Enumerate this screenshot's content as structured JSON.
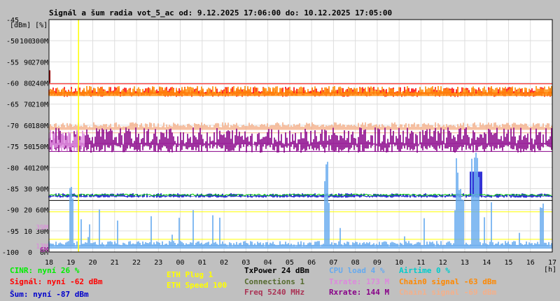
{
  "chart_data": {
    "type": "line",
    "title": "Signál a šum radia vot_5_ac od: 9.12.2025 17:06:00 do: 10.12.2025 17:05:00",
    "units_label": "[dBm] [%]",
    "xlabel": "[h]",
    "x_ticks": [
      "18",
      "19",
      "20",
      "21",
      "22",
      "23",
      "00",
      "01",
      "02",
      "03",
      "04",
      "05",
      "06",
      "07",
      "08",
      "09",
      "10",
      "11",
      "12",
      "13",
      "14",
      "15",
      "16",
      "17"
    ],
    "x_range": [
      18,
      41
    ],
    "y_range_dbm": [
      -100,
      -45
    ],
    "y_ticks": [
      {
        "dbm": "-45",
        "pct": "",
        "rate": ""
      },
      {
        "dbm": "-50",
        "pct": "100",
        "rate": "300M"
      },
      {
        "dbm": "-55",
        "pct": "90",
        "rate": "270M"
      },
      {
        "dbm": "-60",
        "pct": "80",
        "rate": "240M"
      },
      {
        "dbm": "-65",
        "pct": "70",
        "rate": "210M"
      },
      {
        "dbm": "-70",
        "pct": "60",
        "rate": "180M"
      },
      {
        "dbm": "-75",
        "pct": "50",
        "rate": "150M"
      },
      {
        "dbm": "-80",
        "pct": "40",
        "rate": "120M"
      },
      {
        "dbm": "-85",
        "pct": "30",
        "rate": "90M"
      },
      {
        "dbm": "-90",
        "pct": "20",
        "rate": "60M"
      },
      {
        "dbm": "-95",
        "pct": "10",
        "rate": "30M"
      },
      {
        "dbm": "-100",
        "pct": "0",
        "rate": "0M"
      }
    ],
    "side_labels": [
      {
        "text": "39M",
        "color": "#dd88dd",
        "dbm": -94
      },
      {
        "text": "13M",
        "color": "#dd88dd",
        "dbm": -98.5
      },
      {
        "text": "6M",
        "color": "#990099",
        "dbm": -99.3
      }
    ],
    "reference_lines": [
      {
        "dbm": -60.2,
        "color": "#ff0000"
      },
      {
        "dbm": -62.3,
        "color": "#ff8800"
      },
      {
        "dbm": -71.8,
        "color": "#f4b08a"
      },
      {
        "dbm": -74.3,
        "color": "#dd88dd"
      },
      {
        "dbm": -76.2,
        "color": "#880088"
      },
      {
        "dbm": -87.8,
        "color": "#000000"
      },
      {
        "dbm": -90.5,
        "color": "#ffff00"
      },
      {
        "dbm": -97.0,
        "color": "#ffff00"
      },
      {
        "dbm": -98.4,
        "color": "#66aaee"
      }
    ],
    "eth_marker_x": 19.35,
    "series": [
      {
        "key": "signal",
        "color": "#ff0000",
        "base": -62.5,
        "spread": 1.6,
        "type": "ribbon"
      },
      {
        "key": "chain0",
        "color": "#ff8800",
        "base": -62.5,
        "spread": 1.8,
        "type": "spikes_up"
      },
      {
        "key": "chain1",
        "color": "#f4b08a",
        "base": -70.5,
        "spread": 1.2,
        "type": "spikes_up"
      },
      {
        "key": "rxrate",
        "color": "#880088",
        "base": -74.5,
        "spread": 4.0,
        "type": "ribbon"
      },
      {
        "key": "txrate",
        "color": "#dd88dd",
        "base": -74.5,
        "spread": 3.5,
        "type": "ribbon_early"
      },
      {
        "key": "noise",
        "color": "#0000cc",
        "base": -86.8,
        "spread": 0.7,
        "type": "ribbon"
      },
      {
        "key": "cinr",
        "color": "#00cc00",
        "base": -86.5,
        "spread": 0.4,
        "type": "line"
      },
      {
        "key": "cpu",
        "color": "#66aaee",
        "base": -98.6,
        "spread": 1.2,
        "type": "spikes_up"
      }
    ]
  },
  "legend": {
    "col1": [
      {
        "text": "CINR: nyní 26 %",
        "color": "#00ee00"
      },
      {
        "text": "Signál: nyní -62 dBm",
        "color": "#ff0000"
      },
      {
        "text": "Šum: nyní -87 dBm",
        "color": "#0000cc"
      }
    ],
    "col2": [
      {
        "text": "ETH Plug 1",
        "color": "#ffff00"
      },
      {
        "text": "ETH Speed 100",
        "color": "#ffff00"
      }
    ],
    "col3": [
      {
        "text": "TxPower 24 dBm",
        "color": "#000000"
      },
      {
        "text": "Connections 1",
        "color": "#556b2f"
      },
      {
        "text": "Freq 5240 MHz",
        "color": "#aa3355"
      }
    ],
    "col4": [
      {
        "text": "CPU load 4 %",
        "color": "#66aaee"
      },
      {
        "text": "Txrate: 173 M",
        "color": "#dd88dd"
      },
      {
        "text": "Rxrate: 144 M",
        "color": "#880088"
      }
    ],
    "col5": [
      {
        "text": "Airtime 0 %",
        "color": "#00cccc"
      },
      {
        "text": "Chain0 signal -63 dBm",
        "color": "#ff8800"
      },
      {
        "text": "Chain1 signal -69 dBm",
        "color": "#f4b08a"
      }
    ]
  }
}
